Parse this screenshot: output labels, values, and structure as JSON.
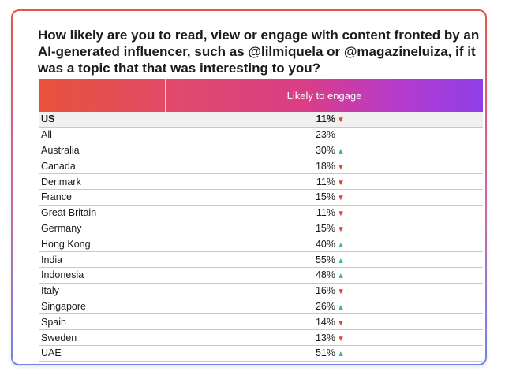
{
  "title": "How likely are you to read, view or engage with content fronted by an AI-generated influencer, such as @lilmiquela or @magazineluiza, if it was a topic that that was interesting to you?",
  "column_header": "Likely to engage",
  "colors": {
    "down": "#e0442f",
    "up": "#3bb89a",
    "header_gradient_start": "#e8523a",
    "header_gradient_end": "#8f3ee8"
  },
  "chart_data": {
    "type": "table",
    "title": "How likely are you to read, view or engage with content fronted by an AI-generated influencer, such as @lilmiquela or @magazineluiza, if it was a topic that that was interesting to you?",
    "columns": [
      "",
      "Likely to engage"
    ],
    "rows": [
      {
        "country": "US",
        "value": "11%",
        "trend": "down",
        "highlight": true
      },
      {
        "country": "All",
        "value": "23%",
        "trend": "none"
      },
      {
        "country": "Australia",
        "value": "30%",
        "trend": "up"
      },
      {
        "country": "Canada",
        "value": "18%",
        "trend": "down"
      },
      {
        "country": "Denmark",
        "value": "11%",
        "trend": "down"
      },
      {
        "country": "France",
        "value": "15%",
        "trend": "down"
      },
      {
        "country": "Great Britain",
        "value": "11%",
        "trend": "down"
      },
      {
        "country": "Germany",
        "value": "15%",
        "trend": "down"
      },
      {
        "country": "Hong Kong",
        "value": "40%",
        "trend": "up"
      },
      {
        "country": "India",
        "value": "55%",
        "trend": "up"
      },
      {
        "country": "Indonesia",
        "value": "48%",
        "trend": "up"
      },
      {
        "country": "Italy",
        "value": "16%",
        "trend": "down"
      },
      {
        "country": "Singapore",
        "value": "26%",
        "trend": "up"
      },
      {
        "country": "Spain",
        "value": "14%",
        "trend": "down"
      },
      {
        "country": "Sweden",
        "value": "13%",
        "trend": "down"
      },
      {
        "country": "UAE",
        "value": "51%",
        "trend": "up"
      }
    ]
  }
}
